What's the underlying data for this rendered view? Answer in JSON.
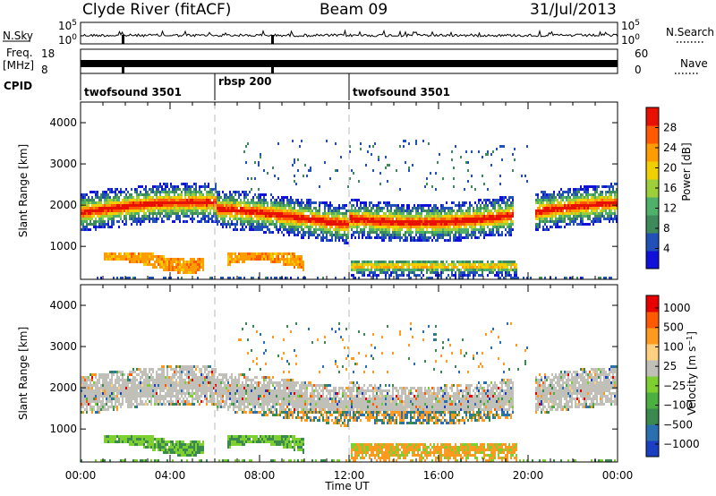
{
  "header": {
    "site": "Clyde River (fitACF)",
    "beam": "Beam 09",
    "date": "31/Jul/2013"
  },
  "strips": {
    "nsky_label": "N.Sky",
    "nsky_ticks": [
      "10^5",
      "10^0"
    ],
    "nsearch_label": "N.Search",
    "freq_label_1": "Freq.",
    "freq_label_2": "[MHz]",
    "freq_ticks": [
      "18",
      "8"
    ],
    "nave_label": "Nave",
    "nave_ticks": [
      "60",
      "0"
    ],
    "cpid_label": "CPID",
    "cpid_segments": [
      {
        "name": "twofsound 3501",
        "start_h": 0,
        "end_h": 6
      },
      {
        "name": "rbsp 200",
        "start_h": 6,
        "end_h": 12
      },
      {
        "name": "twofsound 3501",
        "start_h": 12,
        "end_h": 24
      }
    ]
  },
  "chart_data": [
    {
      "type": "heatmap",
      "title": "",
      "xlabel": "",
      "ylabel": "Slant Range [km]",
      "xlim": [
        0,
        24
      ],
      "ylim": [
        200,
        4500
      ],
      "yticks": [
        "1000",
        "2000",
        "3000",
        "4000"
      ],
      "colorbar": {
        "label": "Power [dB]",
        "range": [
          0,
          32
        ],
        "ticks": [
          "4",
          "8",
          "12",
          "16",
          "20",
          "24",
          "28"
        ],
        "colors": [
          "#1010d8",
          "#2050b8",
          "#3f8a5a",
          "#4fb06a",
          "#9ccf3a",
          "#f0d000",
          "#ff9c00",
          "#ff5a00",
          "#e81000"
        ]
      }
    },
    {
      "type": "heatmap",
      "title": "",
      "xlabel": "Time UT",
      "ylabel": "Slant Range [km]",
      "xlim": [
        0,
        24
      ],
      "ylim": [
        200,
        4500
      ],
      "xticks": [
        "00:00",
        "04:00",
        "08:00",
        "12:00",
        "16:00",
        "20:00",
        "00:00"
      ],
      "yticks": [
        "1000",
        "2000",
        "3000",
        "4000"
      ],
      "colorbar": {
        "label": "Velocity [m s^-1]",
        "ticks": [
          "1000",
          "500",
          "100",
          "25",
          "−25",
          "−100",
          "−500",
          "−1000"
        ],
        "colors": [
          "#1a3fc0",
          "#2a70b0",
          "#3a8a50",
          "#4cb040",
          "#7ed030",
          "#c0c0b8",
          "#ffd080",
          "#ff9a20",
          "#ff5a00",
          "#e80000"
        ]
      }
    }
  ]
}
